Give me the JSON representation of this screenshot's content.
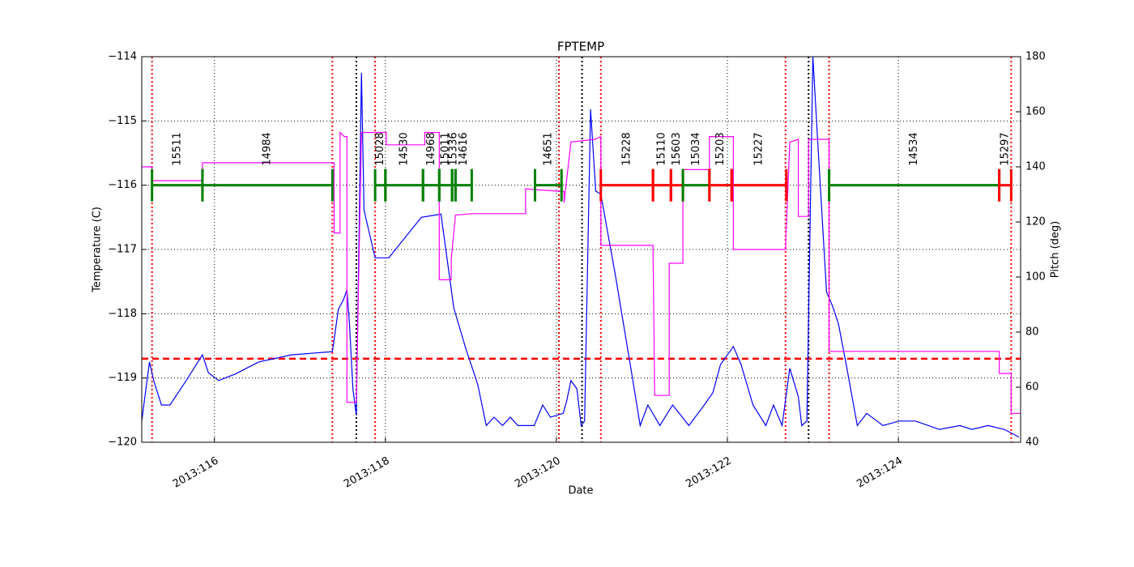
{
  "chart_data": {
    "type": "line",
    "title": "FPTEMP",
    "x_label": "Date",
    "y_label": "Temperature (C)",
    "y2_label": "Pitch (deg)",
    "xlim": [
      115.15,
      125.43
    ],
    "xticks": [
      {
        "value": 116,
        "label": "2013:116"
      },
      {
        "value": 118,
        "label": "2013:118"
      },
      {
        "value": 120,
        "label": "2013:120"
      },
      {
        "value": 122,
        "label": "2013:122"
      },
      {
        "value": 124,
        "label": "2013:124"
      }
    ],
    "ylim": [
      -120,
      -114
    ],
    "yticks": [
      {
        "value": -120,
        "label": "−120"
      },
      {
        "value": -119,
        "label": "−119"
      },
      {
        "value": -118,
        "label": "−118"
      },
      {
        "value": -117,
        "label": "−117"
      },
      {
        "value": -116,
        "label": "−116"
      },
      {
        "value": -115,
        "label": "−115"
      },
      {
        "value": -114,
        "label": "−114"
      }
    ],
    "y2lim": [
      40,
      180
    ],
    "y2ticks": [
      40,
      60,
      80,
      100,
      120,
      140,
      160,
      180
    ],
    "y2_color": "#ff00ff",
    "grid": true,
    "series": [
      {
        "color": "#0000ff",
        "x": [
          115.15,
          115.24,
          115.29,
          115.38,
          115.48,
          115.67,
          115.86,
          115.93,
          116.05,
          116.24,
          116.52,
          116.9,
          117.38,
          117.45,
          117.51,
          117.55,
          117.58,
          117.62,
          117.66,
          117.72,
          117.75,
          117.88,
          118.04,
          118.42,
          118.65,
          118.8,
          118.94,
          119.08,
          119.18,
          119.27,
          119.37,
          119.46,
          119.55,
          119.74,
          119.84,
          119.93,
          120.08,
          120.12,
          120.17,
          120.24,
          120.29,
          120.33,
          120.4,
          120.46,
          120.52,
          120.69,
          120.88,
          120.98,
          121.07,
          121.21,
          121.36,
          121.55,
          121.73,
          121.83,
          121.92,
          122.07,
          122.16,
          122.3,
          122.45,
          122.54,
          122.64,
          122.73,
          122.83,
          122.87,
          122.93,
          123.0,
          123.06,
          123.16,
          123.23,
          123.3,
          123.39,
          123.52,
          123.63,
          123.82,
          124.01,
          124.2,
          124.48,
          124.72,
          124.86,
          125.05,
          125.24,
          125.41
        ],
        "values": [
          -119.67,
          -118.75,
          -119.04,
          -119.42,
          -119.42,
          -119.04,
          -118.64,
          -118.92,
          -119.04,
          -118.94,
          -118.75,
          -118.64,
          -118.59,
          -117.93,
          -117.78,
          -117.63,
          -118.16,
          -119.17,
          -119.58,
          -114.25,
          -116.39,
          -117.13,
          -117.13,
          -116.5,
          -116.45,
          -117.91,
          -118.54,
          -119.1,
          -119.74,
          -119.61,
          -119.74,
          -119.61,
          -119.74,
          -119.74,
          -119.42,
          -119.61,
          -119.55,
          -119.36,
          -119.04,
          -119.17,
          -119.74,
          -119.67,
          -114.82,
          -116.09,
          -116.14,
          -117.4,
          -118.92,
          -119.74,
          -119.42,
          -119.74,
          -119.42,
          -119.74,
          -119.42,
          -119.23,
          -118.79,
          -118.51,
          -118.79,
          -119.42,
          -119.74,
          -119.42,
          -119.74,
          -118.85,
          -119.29,
          -119.74,
          -119.67,
          -114.0,
          -115.39,
          -117.66,
          -117.88,
          -118.16,
          -118.79,
          -119.74,
          -119.55,
          -119.74,
          -119.67,
          -119.67,
          -119.8,
          -119.74,
          -119.8,
          -119.74,
          -119.8,
          -119.92
        ]
      },
      {
        "color": "#ff00ff",
        "axis": "y2",
        "x": [
          115.15,
          115.27,
          115.27,
          115.86,
          115.86,
          117.4,
          117.4,
          117.47,
          117.47,
          117.52,
          117.55,
          117.55,
          117.66,
          117.72,
          118.01,
          118.01,
          118.46,
          118.46,
          118.63,
          118.63,
          118.77,
          118.77,
          118.82,
          119.01,
          119.64,
          119.64,
          120.09,
          120.09,
          120.17,
          120.45,
          120.52,
          120.52,
          121.13,
          121.15,
          121.32,
          121.32,
          121.48,
          121.48,
          121.79,
          121.79,
          122.07,
          122.07,
          122.68,
          122.73,
          122.83,
          122.83,
          122.95,
          122.95,
          123.19,
          123.19,
          125.18,
          125.18,
          125.32,
          125.32,
          125.43
        ],
        "values": [
          140,
          140,
          135,
          135,
          141.5,
          141.5,
          116,
          116,
          152.5,
          151,
          151,
          54.5,
          54.5,
          152.5,
          152.5,
          148,
          148,
          152.5,
          152.5,
          99,
          99,
          106.5,
          122.5,
          123,
          123,
          132,
          131,
          127,
          149,
          150,
          151,
          111.5,
          111.5,
          57,
          57,
          105,
          105,
          139,
          139,
          151,
          151,
          110,
          110,
          149,
          150,
          122,
          122,
          150,
          150,
          73,
          73,
          65,
          65,
          50.5,
          50.5
        ]
      }
    ],
    "limit_line": {
      "value": -118.7,
      "color": "#ff0000"
    },
    "vlines": [
      {
        "color": "#ff0000",
        "x": [
          115.27,
          117.38,
          117.88,
          120.03,
          120.52,
          122.68,
          123.19,
          125.32
        ]
      },
      {
        "color": "#000000",
        "x": [
          117.66,
          120.3,
          122.95
        ]
      }
    ],
    "obs_level": -116,
    "observations": [
      {
        "label": "15511",
        "start": 115.27,
        "stop": 115.86,
        "color": "#008000"
      },
      {
        "label": "14984",
        "start": 115.86,
        "stop": 117.38,
        "color": "#008000"
      },
      {
        "label": "15028",
        "start": 117.88,
        "stop": 118.0,
        "color": "#008000"
      },
      {
        "label": "14530",
        "start": 118.0,
        "stop": 118.44,
        "color": "#008000"
      },
      {
        "label": "14968",
        "start": 118.44,
        "stop": 118.63,
        "color": "#008000"
      },
      {
        "label": "15011",
        "start": 118.63,
        "stop": 118.78,
        "color": "#008000"
      },
      {
        "label": "15336",
        "start": 118.78,
        "stop": 118.82,
        "color": "#008000"
      },
      {
        "label": "14616",
        "start": 118.82,
        "stop": 119.01,
        "color": "#008000"
      },
      {
        "label": "14651",
        "start": 119.75,
        "stop": 120.06,
        "color": "#008000"
      },
      {
        "label": "15228",
        "start": 120.52,
        "stop": 121.13,
        "color": "#ff0000"
      },
      {
        "label": "15110",
        "start": 121.13,
        "stop": 121.34,
        "color": "#ff0000"
      },
      {
        "label": "15603",
        "start": 121.34,
        "stop": 121.48,
        "color": "#ff0000"
      },
      {
        "label": "15034",
        "start": 121.48,
        "stop": 121.79,
        "color": "#008000"
      },
      {
        "label": "15203",
        "start": 121.79,
        "stop": 122.05,
        "color": "#ff0000"
      },
      {
        "label": "15227",
        "start": 122.05,
        "stop": 122.69,
        "color": "#ff0000"
      },
      {
        "label": "14534",
        "start": 123.19,
        "stop": 125.18,
        "color": "#008000"
      },
      {
        "label": "15297",
        "start": 125.18,
        "stop": 125.32,
        "color": "#ff0000"
      }
    ]
  }
}
